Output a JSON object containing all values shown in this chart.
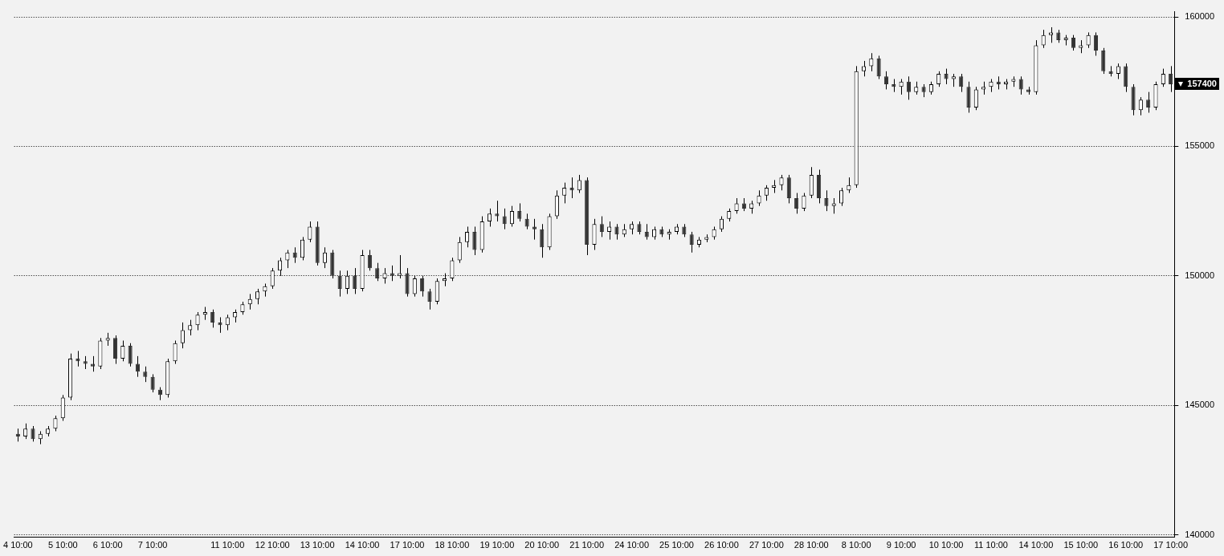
{
  "chart_data": {
    "type": "candlestick",
    "categories": [
      "4 10:00",
      null,
      null,
      null,
      null,
      null,
      "5 10:00",
      null,
      null,
      null,
      null,
      null,
      "6 10:00",
      null,
      null,
      null,
      null,
      null,
      "7 10:00",
      null,
      null,
      null,
      null,
      null,
      null,
      null,
      null,
      null,
      "11 10:00",
      null,
      null,
      null,
      null,
      null,
      "12 10:00",
      null,
      null,
      null,
      null,
      null,
      "13 10:00",
      null,
      null,
      null,
      null,
      null,
      "14 10:00",
      null,
      null,
      null,
      null,
      null,
      "17 10:00",
      null,
      null,
      null,
      null,
      null,
      "18 10:00",
      null,
      null,
      null,
      null,
      null,
      "19 10:00",
      null,
      null,
      null,
      null,
      null,
      "20 10:00",
      null,
      null,
      null,
      null,
      null,
      "21 10:00",
      null,
      null,
      null,
      null,
      null,
      "24 10:00",
      null,
      null,
      null,
      null,
      null,
      "25 10:00",
      null,
      null,
      null,
      null,
      null,
      "26 10:00",
      null,
      null,
      null,
      null,
      null,
      "27 10:00",
      null,
      null,
      null,
      null,
      null,
      "28 10:00",
      null,
      null,
      null,
      null,
      null,
      "8 10:00",
      null,
      null,
      null,
      null,
      null,
      "9 10:00",
      null,
      null,
      null,
      null,
      null,
      "10 10:00",
      null,
      null,
      null,
      null,
      null,
      "11 10:00",
      null,
      null,
      null,
      null,
      null,
      "14 10:00",
      null,
      null,
      null,
      null,
      null,
      "15 10:00",
      null,
      null,
      null,
      null,
      null,
      "16 10:00",
      null,
      null,
      null,
      null,
      null,
      "17 10:00"
    ],
    "ohlc": [
      [
        143900,
        144100,
        143600,
        143800
      ],
      [
        143800,
        144300,
        143700,
        144100
      ],
      [
        144100,
        144200,
        143600,
        143700
      ],
      [
        143700,
        144000,
        143500,
        143900
      ],
      [
        143900,
        144200,
        143800,
        144100
      ],
      [
        144100,
        144600,
        144000,
        144500
      ],
      [
        144500,
        145400,
        144400,
        145300
      ],
      [
        145300,
        147000,
        145200,
        146800
      ],
      [
        146800,
        147100,
        146500,
        146700
      ],
      [
        146700,
        146900,
        146400,
        146600
      ],
      [
        146600,
        146900,
        146300,
        146500
      ],
      [
        146500,
        147600,
        146400,
        147500
      ],
      [
        147500,
        147800,
        147300,
        147600
      ],
      [
        147600,
        147700,
        146600,
        146800
      ],
      [
        146800,
        147500,
        146700,
        147300
      ],
      [
        147300,
        147400,
        146500,
        146600
      ],
      [
        146600,
        146900,
        146100,
        146300
      ],
      [
        146300,
        146500,
        145900,
        146100
      ],
      [
        146100,
        146200,
        145500,
        145600
      ],
      [
        145600,
        145700,
        145200,
        145400
      ],
      [
        145400,
        146800,
        145300,
        146700
      ],
      [
        146700,
        147500,
        146600,
        147400
      ],
      [
        147400,
        148200,
        147200,
        147900
      ],
      [
        147900,
        148300,
        147700,
        148100
      ],
      [
        148100,
        148600,
        147900,
        148500
      ],
      [
        148500,
        148800,
        148300,
        148600
      ],
      [
        148600,
        148700,
        148000,
        148200
      ],
      [
        148200,
        148400,
        147800,
        148100
      ],
      [
        148100,
        148500,
        147900,
        148400
      ],
      [
        148400,
        148700,
        148200,
        148600
      ],
      [
        148600,
        149000,
        148500,
        148900
      ],
      [
        148900,
        149300,
        148700,
        149100
      ],
      [
        149100,
        149500,
        148900,
        149400
      ],
      [
        149400,
        149700,
        149200,
        149600
      ],
      [
        149600,
        150300,
        149500,
        150200
      ],
      [
        150200,
        150700,
        150000,
        150600
      ],
      [
        150600,
        151000,
        150300,
        150900
      ],
      [
        150900,
        151100,
        150500,
        150700
      ],
      [
        150700,
        151500,
        150600,
        151400
      ],
      [
        151400,
        152100,
        151300,
        151900
      ],
      [
        151900,
        152100,
        150400,
        150500
      ],
      [
        150500,
        151100,
        150300,
        150900
      ],
      [
        150900,
        151000,
        149900,
        150000
      ],
      [
        150000,
        150200,
        149200,
        149500
      ],
      [
        149500,
        150200,
        149300,
        150000
      ],
      [
        150000,
        150300,
        149300,
        149500
      ],
      [
        149500,
        151000,
        149400,
        150800
      ],
      [
        150800,
        151000,
        150200,
        150300
      ],
      [
        150300,
        150500,
        149800,
        149900
      ],
      [
        149900,
        150300,
        149700,
        150100
      ],
      [
        150100,
        150400,
        149800,
        150000
      ],
      [
        150000,
        150800,
        149900,
        150100
      ],
      [
        150100,
        150300,
        149200,
        149300
      ],
      [
        149300,
        150000,
        149200,
        149900
      ],
      [
        149900,
        150000,
        149200,
        149400
      ],
      [
        149400,
        149500,
        148700,
        149000
      ],
      [
        149000,
        149900,
        148900,
        149800
      ],
      [
        149800,
        150100,
        149600,
        149900
      ],
      [
        149900,
        150700,
        149800,
        150600
      ],
      [
        150600,
        151500,
        150500,
        151300
      ],
      [
        151300,
        151900,
        151100,
        151700
      ],
      [
        151700,
        151900,
        150800,
        151000
      ],
      [
        151000,
        152300,
        150900,
        152100
      ],
      [
        152100,
        152600,
        151900,
        152400
      ],
      [
        152400,
        152900,
        152100,
        152300
      ],
      [
        152300,
        152600,
        151800,
        152000
      ],
      [
        152000,
        152700,
        151900,
        152500
      ],
      [
        152500,
        152800,
        152100,
        152200
      ],
      [
        152200,
        152400,
        151800,
        151900
      ],
      [
        151900,
        152200,
        151400,
        151800
      ],
      [
        151800,
        152000,
        150700,
        151100
      ],
      [
        151100,
        152400,
        151000,
        152300
      ],
      [
        152300,
        153300,
        152200,
        153100
      ],
      [
        153100,
        153600,
        152800,
        153400
      ],
      [
        153400,
        153800,
        153000,
        153300
      ],
      [
        153300,
        153900,
        153200,
        153700
      ],
      [
        153700,
        153800,
        150800,
        151200
      ],
      [
        151200,
        152200,
        151000,
        152000
      ],
      [
        152000,
        152300,
        151500,
        151700
      ],
      [
        151700,
        152100,
        151400,
        151900
      ],
      [
        151900,
        152000,
        151400,
        151600
      ],
      [
        151600,
        152000,
        151500,
        151800
      ],
      [
        151800,
        152100,
        151600,
        152000
      ],
      [
        152000,
        152100,
        151600,
        151700
      ],
      [
        151700,
        152000,
        151400,
        151500
      ],
      [
        151500,
        151900,
        151400,
        151800
      ],
      [
        151800,
        151900,
        151500,
        151600
      ],
      [
        151600,
        151800,
        151400,
        151700
      ],
      [
        151700,
        152000,
        151600,
        151900
      ],
      [
        151900,
        152000,
        151500,
        151600
      ],
      [
        151600,
        151700,
        150900,
        151200
      ],
      [
        151200,
        151500,
        151100,
        151400
      ],
      [
        151400,
        151600,
        151300,
        151500
      ],
      [
        151500,
        151900,
        151400,
        151800
      ],
      [
        151800,
        152300,
        151700,
        152200
      ],
      [
        152200,
        152600,
        152100,
        152500
      ],
      [
        152500,
        153000,
        152400,
        152800
      ],
      [
        152800,
        153000,
        152500,
        152600
      ],
      [
        152600,
        152900,
        152400,
        152800
      ],
      [
        152800,
        153300,
        152700,
        153100
      ],
      [
        153100,
        153500,
        152900,
        153400
      ],
      [
        153400,
        153700,
        153200,
        153500
      ],
      [
        153500,
        153900,
        153300,
        153800
      ],
      [
        153800,
        153900,
        152800,
        153000
      ],
      [
        153000,
        153200,
        152400,
        152600
      ],
      [
        152600,
        153200,
        152500,
        153100
      ],
      [
        153100,
        154200,
        153000,
        153900
      ],
      [
        153900,
        154100,
        152800,
        153000
      ],
      [
        153000,
        153300,
        152500,
        152700
      ],
      [
        152700,
        153000,
        152400,
        152800
      ],
      [
        152800,
        153400,
        152700,
        153300
      ],
      [
        153300,
        153800,
        153200,
        153500
      ],
      [
        153500,
        158100,
        153400,
        157900
      ],
      [
        157900,
        158300,
        157700,
        158100
      ],
      [
        158100,
        158600,
        157900,
        158400
      ],
      [
        158400,
        158500,
        157600,
        157700
      ],
      [
        157700,
        157900,
        157200,
        157400
      ],
      [
        157400,
        157600,
        157100,
        157300
      ],
      [
        157300,
        157600,
        157000,
        157500
      ],
      [
        157500,
        157700,
        156800,
        157100
      ],
      [
        157100,
        157500,
        157000,
        157300
      ],
      [
        157300,
        157400,
        156900,
        157100
      ],
      [
        157100,
        157500,
        157000,
        157400
      ],
      [
        157400,
        157900,
        157300,
        157800
      ],
      [
        157800,
        158000,
        157400,
        157600
      ],
      [
        157600,
        157800,
        157300,
        157700
      ],
      [
        157700,
        157800,
        157100,
        157300
      ],
      [
        157300,
        157500,
        156300,
        156500
      ],
      [
        156500,
        157300,
        156400,
        157200
      ],
      [
        157200,
        157500,
        157000,
        157300
      ],
      [
        157300,
        157600,
        157100,
        157500
      ],
      [
        157500,
        157700,
        157200,
        157400
      ],
      [
        157400,
        157600,
        157200,
        157500
      ],
      [
        157500,
        157700,
        157300,
        157600
      ],
      [
        157600,
        157700,
        157000,
        157200
      ],
      [
        157200,
        157300,
        157000,
        157100
      ],
      [
        157100,
        159100,
        157000,
        158900
      ],
      [
        158900,
        159500,
        158800,
        159300
      ],
      [
        159300,
        159600,
        159000,
        159400
      ],
      [
        159400,
        159500,
        159000,
        159100
      ],
      [
        159100,
        159300,
        158900,
        159200
      ],
      [
        159200,
        159300,
        158700,
        158800
      ],
      [
        158800,
        159100,
        158600,
        158900
      ],
      [
        158900,
        159400,
        158800,
        159300
      ],
      [
        159300,
        159400,
        158500,
        158700
      ],
      [
        158700,
        158800,
        157800,
        157900
      ],
      [
        157900,
        158100,
        157700,
        157800
      ],
      [
        157800,
        158200,
        157600,
        158100
      ],
      [
        158100,
        158200,
        157100,
        157300
      ],
      [
        157300,
        157400,
        156200,
        156400
      ],
      [
        156400,
        156900,
        156200,
        156800
      ],
      [
        156800,
        157100,
        156300,
        156500
      ],
      [
        156500,
        157500,
        156400,
        157400
      ],
      [
        157400,
        158000,
        157300,
        157800
      ],
      [
        157800,
        158100,
        157100,
        157400
      ]
    ],
    "ylim": [
      139900,
      160200
    ],
    "yticks": [
      140000,
      145000,
      150000,
      155000,
      160000
    ],
    "grid": "y",
    "annotations": [
      "157400"
    ]
  }
}
